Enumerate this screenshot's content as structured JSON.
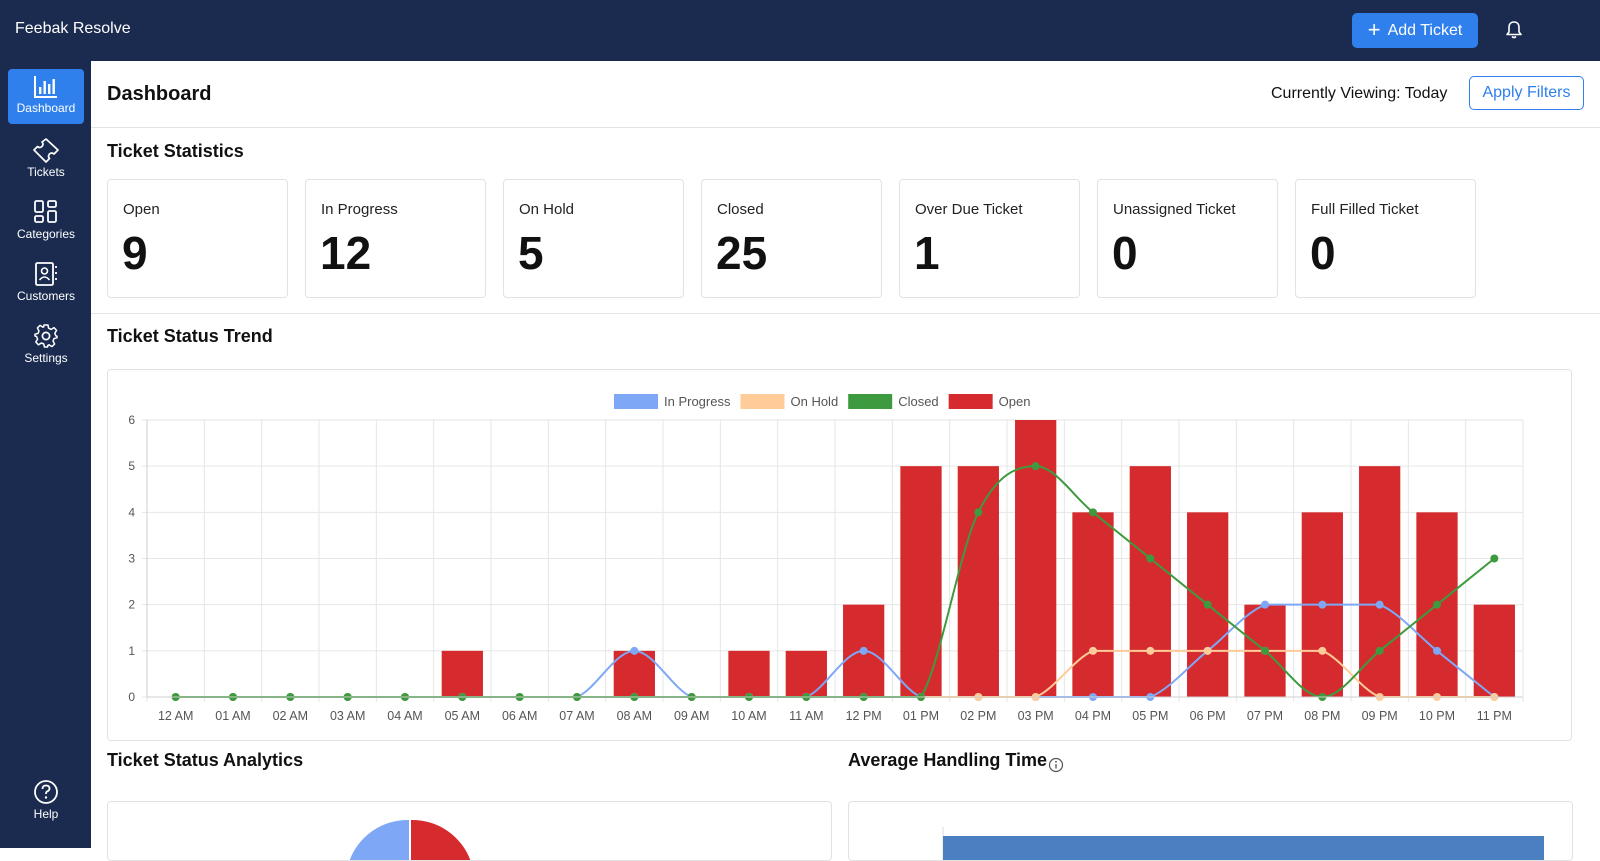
{
  "app": {
    "title": "Feebak Resolve"
  },
  "header": {
    "add_ticket_label": "Add Ticket",
    "bell_icon": "bell-icon"
  },
  "sidebar": {
    "items": [
      {
        "label": "Dashboard",
        "icon": "bar-chart-icon",
        "active": true
      },
      {
        "label": "Tickets",
        "icon": "ticket-icon",
        "active": false
      },
      {
        "label": "Categories",
        "icon": "grid-icon",
        "active": false
      },
      {
        "label": "Customers",
        "icon": "contact-book-icon",
        "active": false
      },
      {
        "label": "Settings",
        "icon": "gear-icon",
        "active": false
      }
    ],
    "help_label": "Help"
  },
  "page": {
    "title": "Dashboard",
    "viewing": "Currently Viewing: Today",
    "apply_filters": "Apply Filters"
  },
  "stats": {
    "title": "Ticket Statistics",
    "cards": [
      {
        "label": "Open",
        "value": "9"
      },
      {
        "label": "In Progress",
        "value": "12"
      },
      {
        "label": "On Hold",
        "value": "5"
      },
      {
        "label": "Closed",
        "value": "25"
      },
      {
        "label": "Over Due Ticket",
        "value": "1"
      },
      {
        "label": "Unassigned Ticket",
        "value": "0"
      },
      {
        "label": "Full Filled Ticket",
        "value": "0"
      }
    ]
  },
  "trend": {
    "title": "Ticket Status Trend"
  },
  "analytics": {
    "title": "Ticket Status Analytics"
  },
  "handling": {
    "title": "Average Handling Time"
  },
  "colors": {
    "accent": "#2f80ed",
    "nav_bg": "#1b2b50",
    "in_progress": "#7ea8f5",
    "on_hold": "#ffcc99",
    "closed": "#3e9a3e",
    "open": "#d62b2e"
  },
  "chart_data": {
    "type": "bar",
    "categories": [
      "12 AM",
      "01 AM",
      "02 AM",
      "03 AM",
      "04 AM",
      "05 AM",
      "06 AM",
      "07 AM",
      "08 AM",
      "09 AM",
      "10 AM",
      "11 AM",
      "12 PM",
      "01 PM",
      "02 PM",
      "03 PM",
      "04 PM",
      "05 PM",
      "06 PM",
      "07 PM",
      "08 PM",
      "09 PM",
      "10 PM",
      "11 PM"
    ],
    "ylim": [
      0,
      6
    ],
    "yticks": [
      0,
      1,
      2,
      3,
      4,
      5,
      6
    ],
    "legend_position": "top",
    "grid": true,
    "series": [
      {
        "name": "In Progress",
        "kind": "line",
        "color": "#7ea8f5",
        "values": [
          0,
          0,
          0,
          0,
          0,
          0,
          0,
          0,
          1,
          0,
          0,
          0,
          1,
          0,
          0,
          0,
          0,
          0,
          1,
          2,
          2,
          2,
          1,
          0
        ]
      },
      {
        "name": "On Hold",
        "kind": "line",
        "color": "#ffcc99",
        "values": [
          0,
          0,
          0,
          0,
          0,
          0,
          0,
          0,
          0,
          0,
          0,
          0,
          0,
          0,
          0,
          0,
          1,
          1,
          1,
          1,
          1,
          0,
          0,
          0
        ]
      },
      {
        "name": "Closed",
        "kind": "line",
        "color": "#3e9a3e",
        "values": [
          0,
          0,
          0,
          0,
          0,
          0,
          0,
          0,
          0,
          0,
          0,
          0,
          0,
          0,
          4,
          5,
          4,
          3,
          2,
          1,
          0,
          1,
          2,
          3
        ]
      },
      {
        "name": "Open",
        "kind": "bar",
        "color": "#d62b2e",
        "values": [
          0,
          0,
          0,
          0,
          0,
          1,
          0,
          0,
          1,
          0,
          1,
          1,
          2,
          5,
          5,
          6,
          4,
          5,
          4,
          2,
          4,
          5,
          4,
          2
        ]
      }
    ]
  }
}
